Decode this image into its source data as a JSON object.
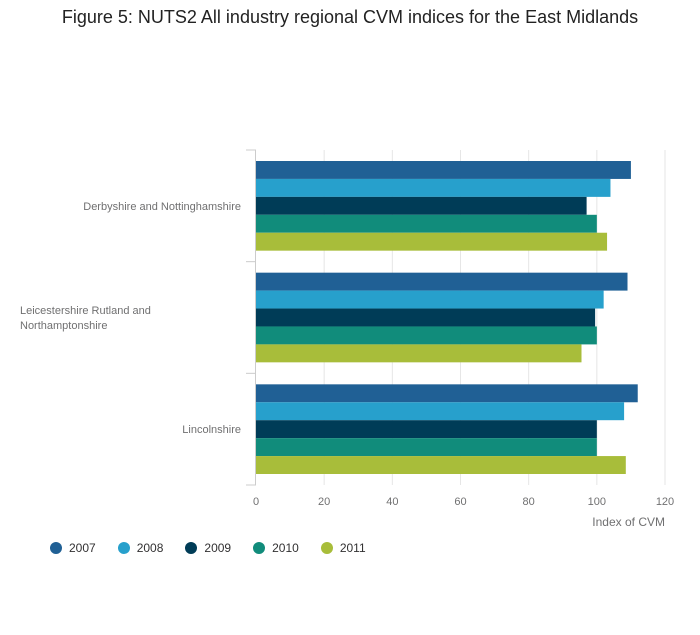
{
  "chart_data": {
    "type": "bar",
    "orientation": "horizontal",
    "title": "Figure 5: NUTS2 All industry regional CVM indices for the East Midlands",
    "xlabel": "Index of CVM",
    "ylabel": "",
    "xlim": [
      0,
      120
    ],
    "xticks": [
      0,
      20,
      40,
      60,
      80,
      100,
      120
    ],
    "grid": true,
    "legend_position": "bottom-left",
    "categories": [
      [
        "Derbyshire and Nottinghamshire"
      ],
      [
        "Leicestershire Rutland and",
        "Northamptonshire"
      ],
      [
        "Lincolnshire"
      ]
    ],
    "series": [
      {
        "name": "2007",
        "color": "#206095",
        "values": [
          110.0,
          109.0,
          112.0
        ]
      },
      {
        "name": "2008",
        "color": "#27a0cc",
        "values": [
          104.0,
          102.0,
          108.0
        ]
      },
      {
        "name": "2009",
        "color": "#003c57",
        "values": [
          97.0,
          99.5,
          100.0
        ]
      },
      {
        "name": "2010",
        "color": "#118c7b",
        "values": [
          100.0,
          100.0,
          100.0
        ]
      },
      {
        "name": "2011",
        "color": "#a8bd3a",
        "values": [
          103.0,
          95.5,
          108.5
        ]
      }
    ]
  }
}
